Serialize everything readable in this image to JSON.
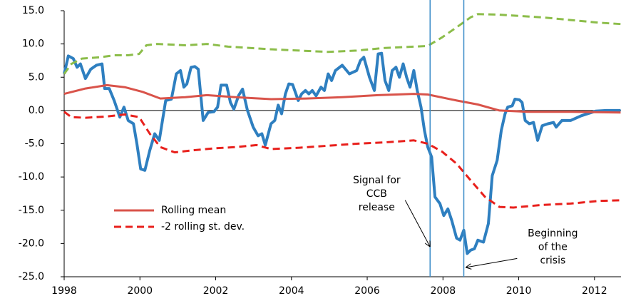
{
  "chart_data": {
    "type": "line",
    "xlim": [
      1998,
      2012.7
    ],
    "xticks": [
      1998,
      2000,
      2002,
      2004,
      2006,
      2008,
      2010,
      2012
    ],
    "ylim": [
      -25,
      15
    ],
    "yticks": [
      {
        "value": 15,
        "label": "15.0"
      },
      {
        "value": 10,
        "label": "10.0"
      },
      {
        "value": 5,
        "label": "5.0"
      },
      {
        "value": 0,
        "label": "0.0"
      },
      {
        "value": -5,
        "label": "-5.0"
      },
      {
        "value": -10,
        "label": "-10.0"
      },
      {
        "value": -15,
        "label": "-15.0"
      },
      {
        "value": -20,
        "label": "-20.0"
      },
      {
        "value": -25,
        "label": "-25.0"
      }
    ],
    "legend": "lower left",
    "series": [
      {
        "color": "#2e7fc0",
        "dash": false,
        "width": 4,
        "x": [
          1998.0,
          1998.11,
          1998.24,
          1998.34,
          1998.43,
          1998.56,
          1998.7,
          1998.85,
          1999.0,
          1999.07,
          1999.19,
          1999.32,
          1999.47,
          1999.58,
          1999.69,
          1999.83,
          1999.92,
          2000.02,
          2000.13,
          2000.26,
          2000.39,
          2000.51,
          2000.68,
          2000.83,
          2000.96,
          2001.07,
          2001.16,
          2001.24,
          2001.35,
          2001.45,
          2001.54,
          2001.67,
          2001.8,
          2001.95,
          2002.05,
          2002.14,
          2002.29,
          2002.39,
          2002.48,
          2002.61,
          2002.71,
          2002.84,
          2002.99,
          2003.12,
          2003.22,
          2003.31,
          2003.46,
          2003.56,
          2003.65,
          2003.74,
          2003.84,
          2003.93,
          2004.03,
          2004.18,
          2004.27,
          2004.37,
          2004.46,
          2004.55,
          2004.65,
          2004.78,
          2004.87,
          2004.97,
          2005.06,
          2005.16,
          2005.34,
          2005.53,
          2005.72,
          2005.82,
          2005.91,
          2006.06,
          2006.19,
          2006.29,
          2006.38,
          2006.47,
          2006.57,
          2006.66,
          2006.76,
          2006.85,
          2006.95,
          2007.04,
          2007.13,
          2007.23,
          2007.32,
          2007.42,
          2007.51,
          2007.6,
          2007.7,
          2007.79,
          2007.92,
          2008.02,
          2008.13,
          2008.23,
          2008.36,
          2008.45,
          2008.55,
          2008.64,
          2008.73,
          2008.83,
          2008.92,
          2009.07,
          2009.2,
          2009.3,
          2009.43,
          2009.54,
          2009.64,
          2009.71,
          2009.83,
          2009.9,
          2010.02,
          2010.09,
          2010.17,
          2010.28,
          2010.39,
          2010.5,
          2010.62,
          2010.77,
          2010.92,
          2010.99,
          2011.14,
          2011.37,
          2011.65,
          2012.03,
          2012.31,
          2012.69
        ],
        "values": [
          5.5,
          8.2,
          7.8,
          6.5,
          7.0,
          4.8,
          6.2,
          6.8,
          7.0,
          3.3,
          3.3,
          1.5,
          -1.0,
          0.5,
          -1.5,
          -2.0,
          -5,
          -8.8,
          -9,
          -6,
          -3.5,
          -4.5,
          1.5,
          1.7,
          5.5,
          6,
          3.5,
          4.0,
          6.5,
          6.6,
          6.2,
          -1.5,
          -0.3,
          -0.2,
          0.5,
          3.8,
          3.8,
          1.2,
          0.2,
          2.3,
          3.2,
          0,
          -2.5,
          -3.8,
          -3.5,
          -5.2,
          -2.0,
          -1.5,
          0.8,
          -0.5,
          2.5,
          4.0,
          3.9,
          1.5,
          2.5,
          3.0,
          2.5,
          3.0,
          2.2,
          3.5,
          3.0,
          5.5,
          4.5,
          6.0,
          6.8,
          5.5,
          6.0,
          7.5,
          8.0,
          5.0,
          3.0,
          8.5,
          8.6,
          4.5,
          3.0,
          6.0,
          6.5,
          5.0,
          7.0,
          5.0,
          3.5,
          6.0,
          3.0,
          0.5,
          -3,
          -5.5,
          -7,
          -13,
          -14,
          -15.8,
          -14.8,
          -16.5,
          -19.2,
          -19.5,
          -18,
          -21.5,
          -21,
          -20.8,
          -19.5,
          -19.8,
          -17,
          -9.8,
          -7.5,
          -3,
          -0.5,
          0.5,
          0.7,
          1.7,
          1.6,
          1.2,
          -1.5,
          -2,
          -1.8,
          -4.5,
          -2.3,
          -2.0,
          -1.8,
          -2.5,
          -1.5,
          -1.5,
          -0.8,
          -0.1,
          0.0,
          0.0
        ]
      },
      {
        "name": "Rolling mean",
        "color": "#d9534a",
        "dash": false,
        "width": 3,
        "x": [
          1998.0,
          1998.56,
          1999.13,
          1999.6,
          2000.07,
          2000.54,
          2001.2,
          2001.77,
          2002.52,
          2003.46,
          2004.4,
          2005.34,
          2006.29,
          2007.23,
          2007.6,
          2008.36,
          2008.92,
          2009.49,
          2010.24,
          2011.37,
          2012.69
        ],
        "values": [
          2.5,
          3.3,
          3.8,
          3.5,
          2.8,
          1.8,
          2.0,
          2.3,
          2.0,
          1.7,
          1.8,
          2.0,
          2.3,
          2.5,
          2.4,
          1.5,
          0.9,
          0.0,
          -0.2,
          -0.2,
          -0.3
        ]
      },
      {
        "name": "-2 rolling st. dev.",
        "color": "#e8201c",
        "dash": true,
        "width": 3,
        "x": [
          1998.0,
          1998.19,
          1998.56,
          1999.13,
          1999.6,
          1999.98,
          2000.26,
          2000.54,
          2000.92,
          2001.39,
          2001.95,
          2002.52,
          2003.08,
          2003.46,
          2004.21,
          2004.97,
          2005.72,
          2006.47,
          2007.23,
          2007.6,
          2007.98,
          2008.36,
          2008.73,
          2009.11,
          2009.49,
          2009.86,
          2010.62,
          2011.37,
          2012.12,
          2012.69
        ],
        "values": [
          -0.2,
          -1.0,
          -1.1,
          -0.9,
          -0.6,
          -1.0,
          -3.5,
          -5.5,
          -6.3,
          -6.0,
          -5.7,
          -5.5,
          -5.2,
          -5.8,
          -5.6,
          -5.3,
          -5.0,
          -4.8,
          -4.5,
          -5.0,
          -6.2,
          -8.0,
          -10.5,
          -13.0,
          -14.5,
          -14.6,
          -14.2,
          -14.0,
          -13.6,
          -13.5
        ]
      },
      {
        "color": "#8cbd4a",
        "dash": true,
        "width": 3,
        "x": [
          1998.0,
          1998.19,
          1998.47,
          1998.94,
          1999.32,
          1999.69,
          1999.98,
          2000.17,
          2000.45,
          2001.2,
          2001.77,
          2002.33,
          2003.46,
          2004.21,
          2004.97,
          2005.72,
          2006.47,
          2007.23,
          2007.6,
          2007.98,
          2008.36,
          2008.73,
          2008.92,
          2009.49,
          2010.62,
          2011.37,
          2012.12,
          2012.69
        ],
        "values": [
          5.5,
          7.0,
          7.8,
          8.0,
          8.3,
          8.3,
          8.5,
          9.8,
          10.0,
          9.8,
          10.0,
          9.6,
          9.2,
          9.0,
          8.8,
          9.0,
          9.4,
          9.6,
          9.7,
          11.0,
          12.5,
          14.0,
          14.5,
          14.4,
          14.0,
          13.6,
          13.2,
          13.0
        ]
      }
    ],
    "vlines": [
      {
        "x": 2007.66,
        "color": "#3a8cc8"
      },
      {
        "x": 2008.55,
        "color": "#3a8cc8"
      }
    ],
    "annotations": [
      {
        "text": [
          "Signal for",
          "CCB",
          "release"
        ],
        "x": 2006.25,
        "y": -10.5,
        "arrow_to": [
          2007.66,
          -20.5
        ]
      },
      {
        "text": [
          "Beginning",
          "of the",
          "crisis"
        ],
        "x": 2010.9,
        "y": -18.5,
        "arrow_to": [
          2008.6,
          -23.6
        ]
      }
    ]
  }
}
